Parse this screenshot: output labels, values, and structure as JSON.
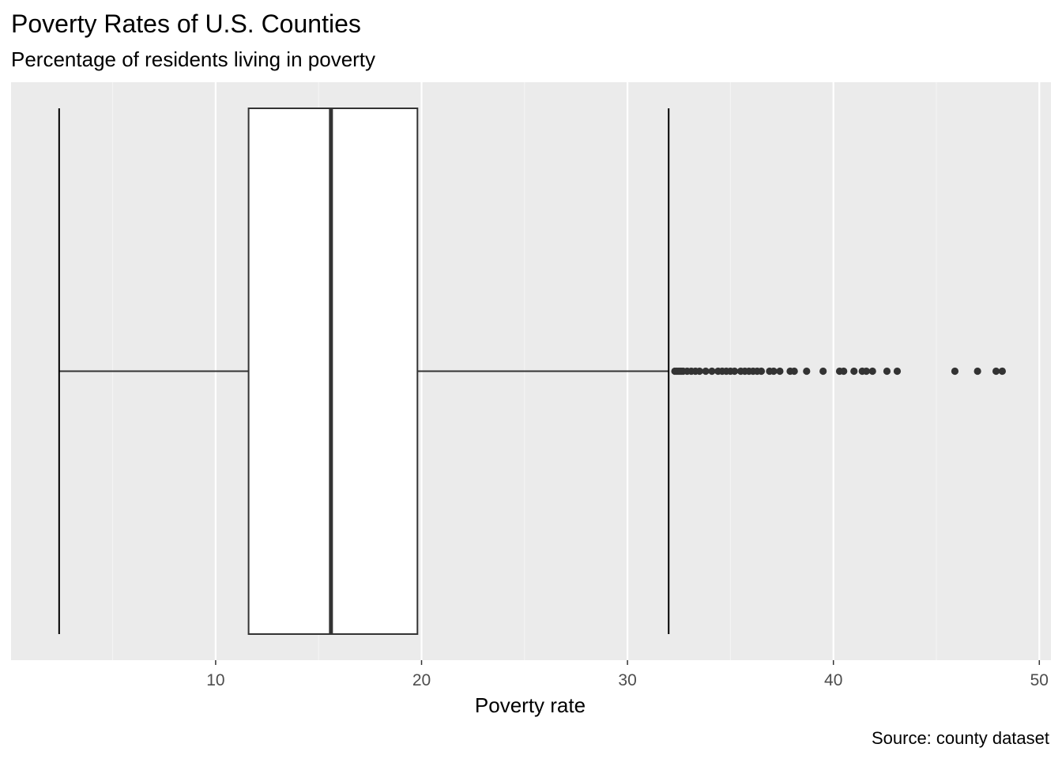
{
  "chart_data": {
    "type": "boxplot",
    "orientation": "horizontal",
    "title": "Poverty Rates of U.S. Counties",
    "subtitle": "Percentage of residents living in poverty",
    "xlabel": "Poverty rate",
    "ylabel": "",
    "caption": "Source: county dataset",
    "xlim": [
      0,
      50
    ],
    "x_ticks": [
      10,
      20,
      30,
      40,
      50
    ],
    "x_tick_labels": [
      "10",
      "20",
      "30",
      "40",
      "50"
    ],
    "grid": true,
    "legend": "none",
    "box": {
      "min": 2.4,
      "q1": 11.6,
      "median": 15.6,
      "q3": 19.8,
      "max": 32.0
    },
    "outliers": [
      32.3,
      32.4,
      32.5,
      32.6,
      32.7,
      32.9,
      33.1,
      33.3,
      33.5,
      33.8,
      34.1,
      34.4,
      34.6,
      34.8,
      35.0,
      35.2,
      35.5,
      35.7,
      35.9,
      36.1,
      36.3,
      36.5,
      36.9,
      37.1,
      37.4,
      37.9,
      38.1,
      38.7,
      39.5,
      40.3,
      40.5,
      41.0,
      41.4,
      41.6,
      41.9,
      42.6,
      43.1,
      45.9,
      47.0,
      47.9,
      48.2
    ],
    "colors": {
      "panel_background": "#ebebeb",
      "grid_major": "#ffffff",
      "grid_minor": "#f5f5f5",
      "box_fill": "#ffffff",
      "box_stroke": "#333333",
      "outlier_fill": "#333333"
    }
  }
}
